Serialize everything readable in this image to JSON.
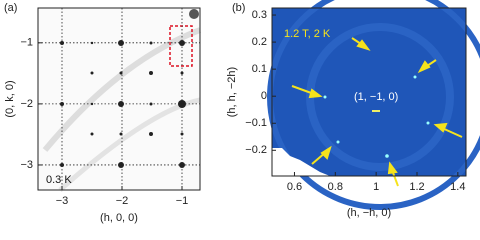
{
  "chart_data": [
    {
      "type": "image",
      "panel_label": "(a)",
      "xlabel": "(h, 0, 0)",
      "ylabel": "(0, k, 0)",
      "xlim": [
        -3.4,
        -0.7
      ],
      "ylim": [
        -3.41,
        -0.43
      ],
      "xticks": [
        {
          "value": -3,
          "label": "−3"
        },
        {
          "value": -2,
          "label": "−2"
        },
        {
          "value": -1,
          "label": "−1"
        }
      ],
      "yticks": [
        {
          "value": -1,
          "label": "−1"
        },
        {
          "value": -2,
          "label": "−2"
        },
        {
          "value": -3,
          "label": "−3"
        }
      ],
      "grid": true,
      "annotations": [
        "0.3 K"
      ]
    },
    {
      "type": "image",
      "panel_label": "(b)",
      "xlabel": "(h, −h, 0)",
      "ylabel": "(h, h, −2h)",
      "xlim": [
        0.49,
        1.44
      ],
      "ylim": [
        -0.295,
        0.326
      ],
      "xticks": [
        0.6,
        0.8,
        1,
        1.2,
        1.4
      ],
      "yticks": [
        0.3,
        0.2,
        0.1,
        0,
        {
          "value": -0.1,
          "label": "−0.1"
        },
        {
          "value": -0.2,
          "label": "−0.2"
        }
      ],
      "grid": false,
      "annotations": [
        "1.2 T, 2 K",
        "(1, −1, 0)"
      ]
    }
  ]
}
